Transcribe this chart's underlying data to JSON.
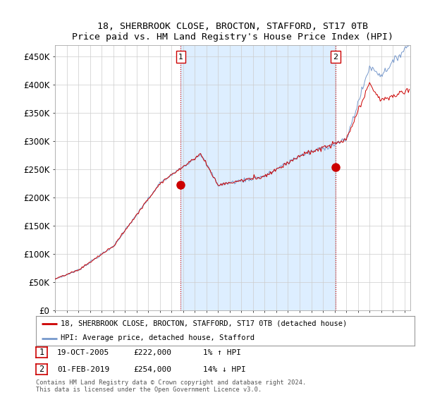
{
  "title": "18, SHERBROOK CLOSE, BROCTON, STAFFORD, ST17 0TB",
  "subtitle": "Price paid vs. HM Land Registry's House Price Index (HPI)",
  "ylabel_ticks": [
    "£0",
    "£50K",
    "£100K",
    "£150K",
    "£200K",
    "£250K",
    "£300K",
    "£350K",
    "£400K",
    "£450K"
  ],
  "ytick_values": [
    0,
    50000,
    100000,
    150000,
    200000,
    250000,
    300000,
    350000,
    400000,
    450000
  ],
  "ylim": [
    0,
    470000
  ],
  "xlim_start": 1995.0,
  "xlim_end": 2025.5,
  "hpi_color": "#7799cc",
  "price_color": "#cc0000",
  "vline_color": "#cc0000",
  "shade_color": "#ddeeff",
  "purchase1_x": 2005.8,
  "purchase1_y": 222000,
  "purchase2_x": 2019.08,
  "purchase2_y": 254000,
  "purchase1_label": "1",
  "purchase2_label": "2",
  "legend_line1": "18, SHERBROOK CLOSE, BROCTON, STAFFORD, ST17 0TB (detached house)",
  "legend_line2": "HPI: Average price, detached house, Stafford",
  "table_row1": [
    "1",
    "19-OCT-2005",
    "£222,000",
    "1% ↑ HPI"
  ],
  "table_row2": [
    "2",
    "01-FEB-2019",
    "£254,000",
    "14% ↓ HPI"
  ],
  "footnote": "Contains HM Land Registry data © Crown copyright and database right 2024.\nThis data is licensed under the Open Government Licence v3.0.",
  "background_color": "#ffffff",
  "grid_color": "#cccccc"
}
